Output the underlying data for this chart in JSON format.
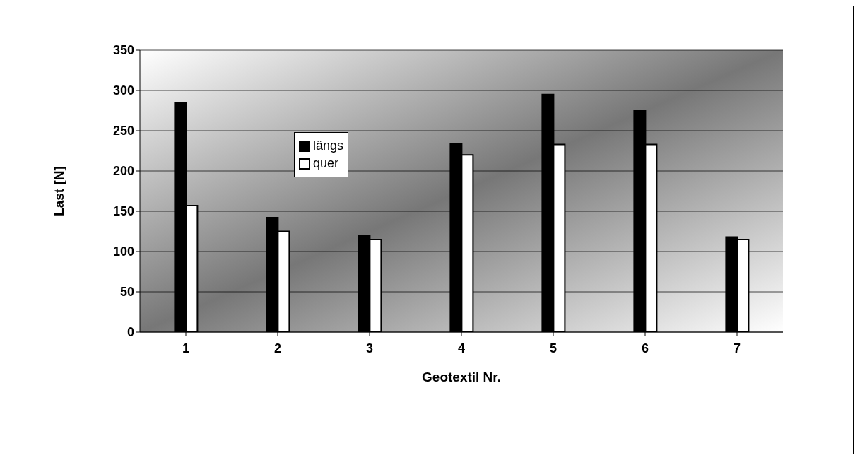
{
  "chart_data": {
    "type": "bar",
    "xlabel": "Geotextil Nr.",
    "ylabel": "Last [N]",
    "categories": [
      "1",
      "2",
      "3",
      "4",
      "5",
      "6",
      "7"
    ],
    "series": [
      {
        "name": "längs",
        "color": "#000000",
        "values": [
          285,
          142,
          120,
          234,
          295,
          275,
          118
        ]
      },
      {
        "name": "quer",
        "color": "#ffffff",
        "values": [
          157,
          125,
          115,
          220,
          233,
          233,
          115
        ]
      }
    ],
    "ylim": [
      0,
      350
    ],
    "yticks": [
      0,
      50,
      100,
      150,
      200,
      250,
      300,
      350
    ],
    "grid": "y",
    "legend": "top"
  }
}
